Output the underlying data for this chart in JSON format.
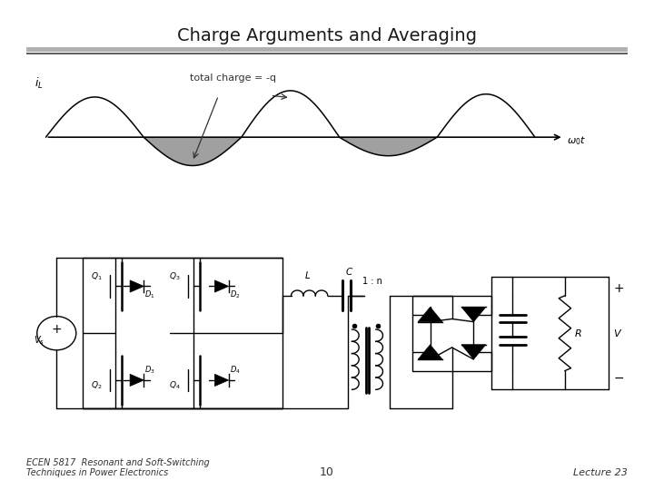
{
  "title": "Charge Arguments and Averaging",
  "subtitle_left": "ECEN 5817  Resonant and Soft-Switching\nTechniques in Power Electronics",
  "page_number": "10",
  "lecture": "Lecture 23",
  "bg_color": "#ffffff",
  "divider_color_top": "#b0b0b0",
  "divider_color_bot": "#606060",
  "waveform_annotation": "total charge = -q",
  "x_axis_label": "ω₀t",
  "wave_color": "#000000",
  "fill_color": "#808080",
  "title_fontsize": 14,
  "footer_fontsize": 7,
  "page_fontsize": 9,
  "lecture_fontsize": 8
}
